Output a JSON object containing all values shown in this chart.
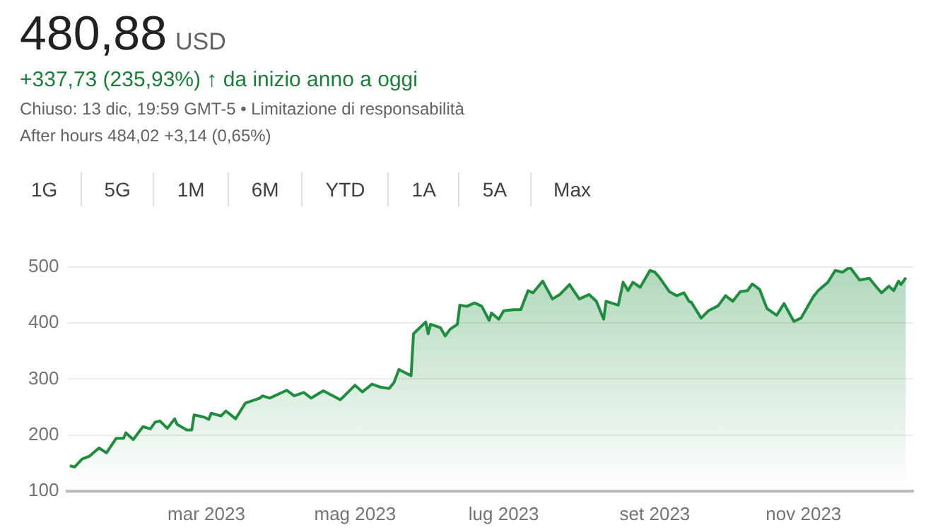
{
  "chart_data": {
    "type": "area",
    "title": "480,88",
    "subtitle": "USD",
    "annotations": [
      "+337,73 (235,93%) ↑ da inizio anno a oggi",
      "Chiuso: 13 dic, 19:59 GMT-5 • Limitazione di responsabilità",
      "After hours 484,02 +3,14 (0,65%)",
      "1G",
      "5G",
      "1M",
      "6M",
      "YTD",
      "1A",
      "5A",
      "Max"
    ],
    "x": [
      "2023-01-04",
      "2023-01-06",
      "2023-01-09",
      "2023-01-12",
      "2023-01-16",
      "2023-01-19",
      "2023-01-23",
      "2023-01-26",
      "2023-01-27",
      "2023-01-30",
      "2023-02-03",
      "2023-02-06",
      "2023-02-08",
      "2023-02-10",
      "2023-02-13",
      "2023-02-16",
      "2023-02-17",
      "2023-02-21",
      "2023-02-23",
      "2023-02-24",
      "2023-02-28",
      "2023-03-02",
      "2023-03-03",
      "2023-03-07",
      "2023-03-09",
      "2023-03-13",
      "2023-03-15",
      "2023-03-17",
      "2023-03-23",
      "2023-03-24",
      "2023-03-27",
      "2023-04-03",
      "2023-04-06",
      "2023-04-10",
      "2023-04-13",
      "2023-04-18",
      "2023-04-21",
      "2023-04-25",
      "2023-05-01",
      "2023-05-04",
      "2023-05-08",
      "2023-05-11",
      "2023-05-15",
      "2023-05-17",
      "2023-05-19",
      "2023-05-24",
      "2023-05-25",
      "2023-05-30",
      "2023-05-31",
      "2023-06-01",
      "2023-06-05",
      "2023-06-07",
      "2023-06-09",
      "2023-06-12",
      "2023-06-13",
      "2023-06-16",
      "2023-06-19",
      "2023-06-22",
      "2023-06-25",
      "2023-06-26",
      "2023-06-29",
      "2023-07-01",
      "2023-07-05",
      "2023-07-08",
      "2023-07-11",
      "2023-07-13",
      "2023-07-17",
      "2023-07-21",
      "2023-07-24",
      "2023-07-28",
      "2023-08-01",
      "2023-08-05",
      "2023-08-08",
      "2023-08-11",
      "2023-08-12",
      "2023-08-17",
      "2023-08-19",
      "2023-08-21",
      "2023-08-23",
      "2023-08-26",
      "2023-08-30",
      "2023-09-01",
      "2023-09-03",
      "2023-09-07",
      "2023-09-10",
      "2023-09-13",
      "2023-09-15",
      "2023-09-16",
      "2023-09-20",
      "2023-09-23",
      "2023-09-27",
      "2023-09-30",
      "2023-10-03",
      "2023-10-06",
      "2023-10-09",
      "2023-10-11",
      "2023-10-14",
      "2023-10-17",
      "2023-10-21",
      "2023-10-24",
      "2023-10-28",
      "2023-10-31",
      "2023-11-05",
      "2023-11-07",
      "2023-11-11",
      "2023-11-14",
      "2023-11-17",
      "2023-11-20",
      "2023-11-24",
      "2023-11-28",
      "2023-12-01",
      "2023-12-03",
      "2023-12-06",
      "2023-12-08",
      "2023-12-10",
      "2023-12-11",
      "2023-12-13"
    ],
    "series": [
      {
        "color": "#1e8e3e",
        "values": [
          145,
          143,
          157,
          162,
          177,
          168,
          194,
          194,
          204,
          192,
          215,
          211,
          223,
          225,
          212,
          229,
          219,
          209,
          209,
          236,
          232,
          228,
          239,
          234,
          243,
          229,
          243,
          257,
          266,
          270,
          266,
          280,
          270,
          276,
          266,
          279,
          272,
          263,
          289,
          277,
          291,
          286,
          283,
          294,
          317,
          306,
          381,
          402,
          381,
          398,
          392,
          377,
          389,
          398,
          432,
          430,
          436,
          430,
          405,
          418,
          407,
          422,
          424,
          424,
          458,
          454,
          475,
          443,
          451,
          469,
          443,
          451,
          439,
          407,
          439,
          432,
          473,
          458,
          473,
          464,
          494,
          491,
          481,
          456,
          449,
          454,
          439,
          437,
          409,
          422,
          431,
          449,
          439,
          456,
          458,
          470,
          460,
          426,
          414,
          435,
          403,
          409,
          447,
          458,
          473,
          494,
          491,
          500,
          477,
          480,
          464,
          454,
          466,
          458,
          475,
          469,
          481
        ]
      }
    ],
    "xlim": [
      "2023-01-03",
      "2023-12-16"
    ],
    "xticks": [
      {
        "value": "2023-03-01",
        "label": "mar 2023"
      },
      {
        "value": "2023-05-01",
        "label": "mag 2023"
      },
      {
        "value": "2023-07-01",
        "label": "lug 2023"
      },
      {
        "value": "2023-09-01",
        "label": "set 2023"
      },
      {
        "value": "2023-11-01",
        "label": "nov 2023"
      }
    ],
    "ylim": [
      100,
      500
    ],
    "yticks": [
      100,
      200,
      300,
      400,
      500
    ],
    "grid": "y",
    "legend": false,
    "marker": "none",
    "line_style": "solid"
  }
}
